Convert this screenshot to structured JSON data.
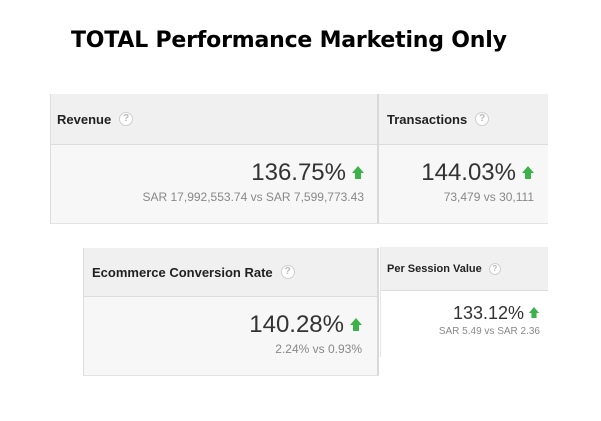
{
  "title": "TOTAL Performance Marketing Only",
  "help_glyph": "?",
  "cards": {
    "revenue": {
      "label": "Revenue",
      "percent_change": "136.75%",
      "trend": "up",
      "comparison": "SAR 17,992,553.74 vs SAR 7,599,773.43"
    },
    "transactions": {
      "label": "Transactions",
      "percent_change": "144.03%",
      "trend": "up",
      "comparison": "73,479 vs 30,111"
    },
    "ecommerce_conversion_rate": {
      "label": "Ecommerce Conversion Rate",
      "percent_change": "140.28%",
      "trend": "up",
      "comparison": "2.24% vs 0.93%"
    },
    "per_session_value": {
      "label": "Per Session Value",
      "percent_change": "133.12%",
      "trend": "up",
      "comparison": "SAR 5.49 vs SAR 2.36"
    }
  },
  "colors": {
    "trend_up": "#3db24b",
    "header_bg": "#f0f0f0",
    "body_bg": "#f7f7f7",
    "value_text": "#333333",
    "comparison_text": "#888888"
  },
  "icons": {
    "help": "help-circle-icon",
    "trend": "arrow-up-icon"
  }
}
